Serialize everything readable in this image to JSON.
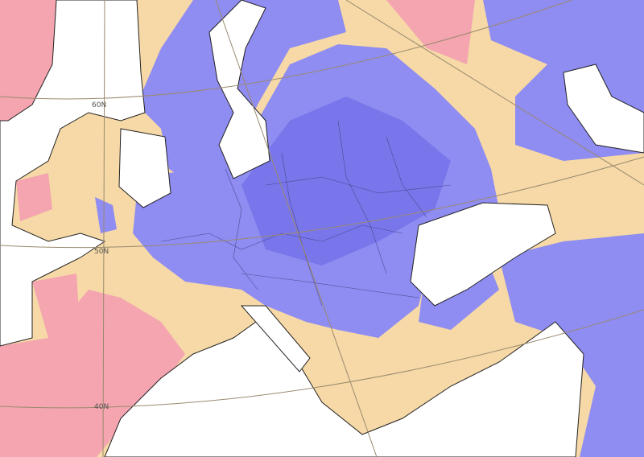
{
  "map": {
    "latitude_labels": [
      "60N",
      "50N",
      "40N"
    ]
  }
}
